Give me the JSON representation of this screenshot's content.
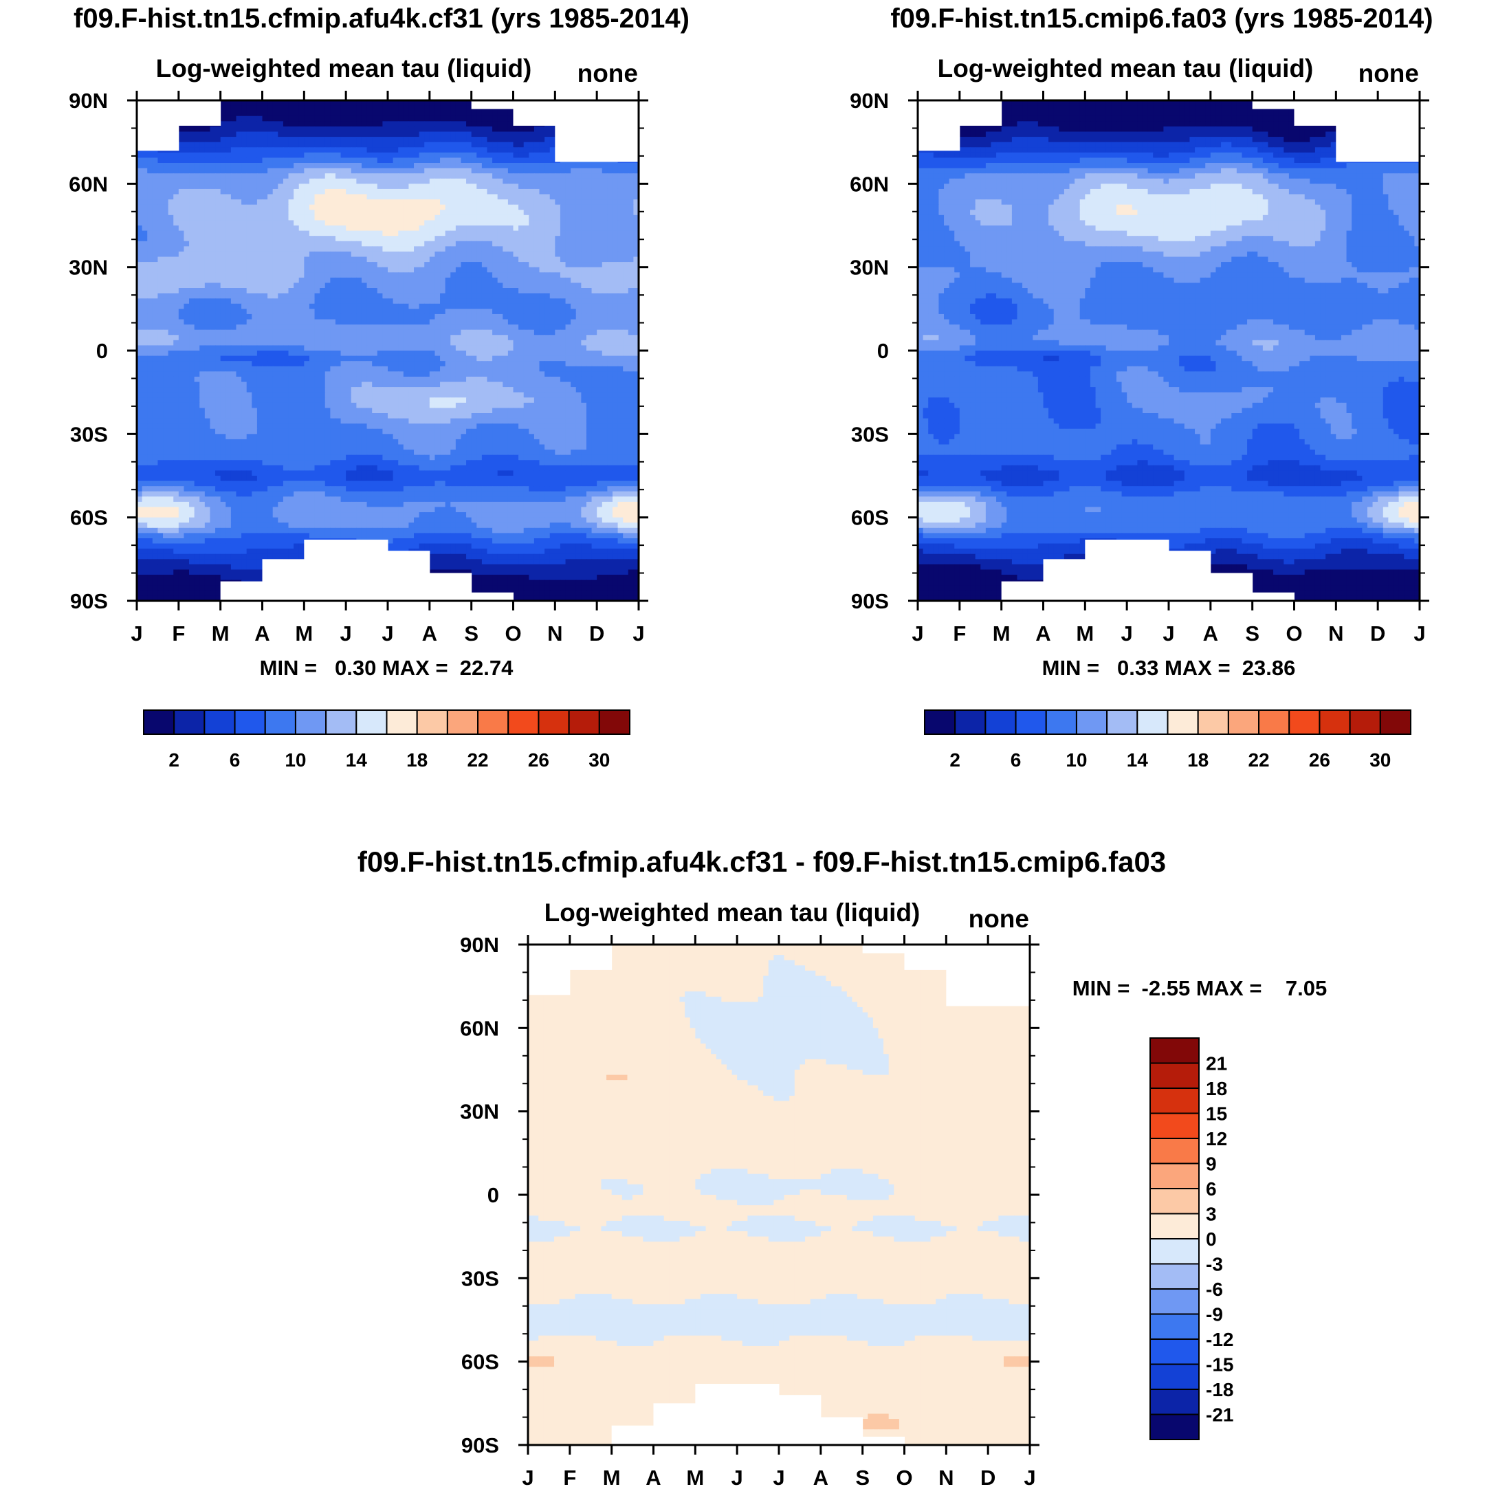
{
  "chart_data": [
    {
      "type": "heatmap",
      "title": "f09.F-hist.tn15.cfmip.afu4k.cf31 (yrs 1985-2014)",
      "subtitle": "Log-weighted mean tau (liquid)",
      "units": "none",
      "x_tick_labels": [
        "J",
        "F",
        "M",
        "A",
        "M",
        "J",
        "J",
        "A",
        "S",
        "O",
        "N",
        "D",
        "J"
      ],
      "y_tick_labels": [
        "90N",
        "60N",
        "30N",
        "0",
        "30S",
        "60S",
        "90S"
      ],
      "ylim": [
        -90,
        90
      ],
      "xlim": [
        0,
        12
      ],
      "stats": "MIN =   0.30 MAX =  22.74",
      "colorbar": {
        "levels": [
          2,
          4,
          6,
          8,
          10,
          12,
          14,
          16,
          18,
          20,
          22,
          24,
          26,
          28,
          30
        ],
        "tick_labels": [
          "2",
          "6",
          "10",
          "14",
          "18",
          "22",
          "26",
          "30"
        ],
        "colors": [
          "#08076e",
          "#0c24a8",
          "#1341d6",
          "#2058ec",
          "#3d78f0",
          "#6f98f3",
          "#a3bcf5",
          "#d7e8fb",
          "#fdebd8",
          "#fcc9a6",
          "#fba67c",
          "#f97a48",
          "#f24a1c",
          "#d6310e",
          "#b51c0a",
          "#820808"
        ]
      },
      "field": "A"
    },
    {
      "type": "heatmap",
      "title": "f09.F-hist.tn15.cmip6.fa03 (yrs 1985-2014)",
      "subtitle": "Log-weighted mean tau (liquid)",
      "units": "none",
      "x_tick_labels": [
        "J",
        "F",
        "M",
        "A",
        "M",
        "J",
        "J",
        "A",
        "S",
        "O",
        "N",
        "D",
        "J"
      ],
      "y_tick_labels": [
        "90N",
        "60N",
        "30N",
        "0",
        "30S",
        "60S",
        "90S"
      ],
      "ylim": [
        -90,
        90
      ],
      "xlim": [
        0,
        12
      ],
      "stats": "MIN =   0.33 MAX =  23.86",
      "colorbar": {
        "levels": [
          2,
          4,
          6,
          8,
          10,
          12,
          14,
          16,
          18,
          20,
          22,
          24,
          26,
          28,
          30
        ],
        "tick_labels": [
          "2",
          "6",
          "10",
          "14",
          "18",
          "22",
          "26",
          "30"
        ],
        "colors": [
          "#08076e",
          "#0c24a8",
          "#1341d6",
          "#2058ec",
          "#3d78f0",
          "#6f98f3",
          "#a3bcf5",
          "#d7e8fb",
          "#fdebd8",
          "#fcc9a6",
          "#fba67c",
          "#f97a48",
          "#f24a1c",
          "#d6310e",
          "#b51c0a",
          "#820808"
        ]
      },
      "field": "B"
    },
    {
      "type": "heatmap",
      "title": "f09.F-hist.tn15.cfmip.afu4k.cf31 - f09.F-hist.tn15.cmip6.fa03",
      "subtitle": "Log-weighted mean tau (liquid)",
      "units": "none",
      "x_tick_labels": [
        "J",
        "F",
        "M",
        "A",
        "M",
        "J",
        "J",
        "A",
        "S",
        "O",
        "N",
        "D",
        "J"
      ],
      "y_tick_labels": [
        "90N",
        "60N",
        "30N",
        "0",
        "30S",
        "60S",
        "90S"
      ],
      "ylim": [
        -90,
        90
      ],
      "xlim": [
        0,
        12
      ],
      "stats": "MIN =  -2.55 MAX =    7.05",
      "colorbar": {
        "levels": [
          -21,
          -18,
          -15,
          -12,
          -9,
          -6,
          -3,
          0,
          3,
          6,
          9,
          12,
          15,
          18,
          21
        ],
        "tick_labels": [
          "21",
          "18",
          "15",
          "12",
          "9",
          "6",
          "3",
          "0",
          "-3",
          "-6",
          "-9",
          "-12",
          "-15",
          "-18",
          "-21"
        ],
        "colors": [
          "#08076e",
          "#0c24a8",
          "#1341d6",
          "#2058ec",
          "#3d78f0",
          "#6f98f3",
          "#a3bcf5",
          "#d7e8fb",
          "#fdebd8",
          "#fcc9a6",
          "#fba67c",
          "#f97a48",
          "#f24a1c",
          "#d6310e",
          "#b51c0a",
          "#820808"
        ]
      },
      "field": "DIFF"
    }
  ]
}
